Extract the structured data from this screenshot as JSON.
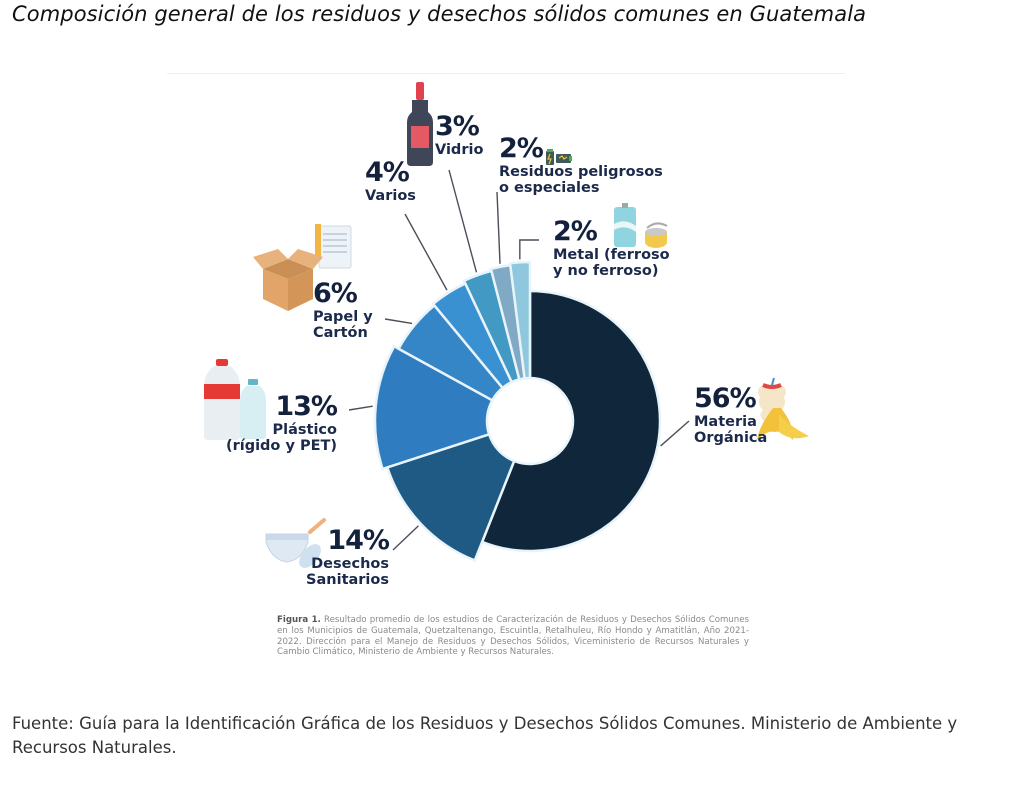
{
  "page": {
    "title": "Composición general de los residuos y desechos sólidos comunes en Guatemala",
    "source": "Fuente: Guía para la Identificación Gráfica de los Residuos y Desechos Sólidos Comunes. Ministerio de Ambiente y Recursos Naturales."
  },
  "figure": {
    "caption_label": "Figura 1.",
    "caption_text": " Resultado promedio de los estudios de Caracterización de Residuos y Desechos Sólidos Comunes en los Municipios de Guatemala, Quetzaltenango, Escuintla, Retalhuleu, Río Hondo y Amatitlán, Año 2021-2022. Dirección para el Manejo de Residuos y Desechos Sólidos, Viceministerio de Recursos Naturales y Cambio Climático, Ministerio de Ambiente y Recursos Naturales."
  },
  "chart_data": {
    "type": "pie",
    "variant": "donut",
    "title": "Composición general de los residuos y desechos sólidos comunes en Guatemala",
    "order": "clockwise from top",
    "slices": [
      {
        "label_pct": "56%",
        "label": [
          "Materia",
          "Orgánica"
        ],
        "value": 56,
        "color": "#10273b",
        "icon": "apple-core-banana-peel-icon"
      },
      {
        "label_pct": "14%",
        "label": [
          "Desechos",
          "Sanitarios"
        ],
        "value": 14,
        "color": "#1f5a85",
        "icon": "diaper-pad-icon"
      },
      {
        "label_pct": "13%",
        "label": [
          "Plástico",
          "(rígido y PET)"
        ],
        "value": 13,
        "color": "#2f7dc0",
        "icon": "plastic-bottles-icon"
      },
      {
        "label_pct": "6%",
        "label": [
          "Papel y",
          "Cartón"
        ],
        "value": 6,
        "color": "#3586c6",
        "icon": "cardboard-box-paper-icon"
      },
      {
        "label_pct": "4%",
        "label": [
          "Varios"
        ],
        "value": 4,
        "color": "#3a91d2",
        "icon": ""
      },
      {
        "label_pct": "3%",
        "label": [
          "Vidrio"
        ],
        "value": 3,
        "color": "#4299c4",
        "icon": "wine-bottle-icon"
      },
      {
        "label_pct": "2%",
        "label": [
          "Residuos peligrosos",
          "o especiales"
        ],
        "value": 2,
        "color": "#7fa9c4",
        "icon": "batteries-icon"
      },
      {
        "label_pct": "2%",
        "label": [
          "Metal (ferroso",
          "y no ferroso)"
        ],
        "value": 2,
        "color": "#8fc7df",
        "icon": "can-tin-icon"
      }
    ]
  }
}
